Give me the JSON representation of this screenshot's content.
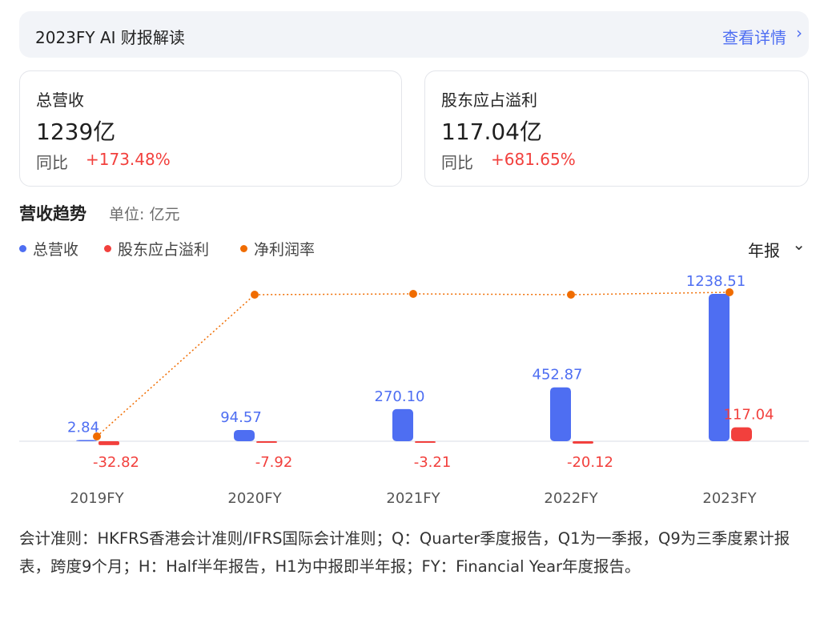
{
  "header": {
    "title": "2023FY AI 财报解读",
    "link_label": "查看详情",
    "chevron_icon": "chevron-right-icon"
  },
  "cards": [
    {
      "label": "总营收",
      "value": "1239亿",
      "yoy_label": "同比",
      "yoy": "+173.48%"
    },
    {
      "label": "股东应占溢利",
      "value": "117.04亿",
      "yoy_label": "同比",
      "yoy": "+681.65%"
    }
  ],
  "section": {
    "title": "营收趋势",
    "unit": "单位: 亿元",
    "period_label": "年报",
    "period_icon": "chevron-down-icon"
  },
  "legend": [
    {
      "name": "总营收",
      "color": "#4e6ef2"
    },
    {
      "name": "股东应占溢利",
      "color": "#f2403d"
    },
    {
      "name": "净利润率",
      "color": "#f06c00"
    }
  ],
  "chart_data": {
    "type": "bar",
    "categories": [
      "2019FY",
      "2020FY",
      "2021FY",
      "2022FY",
      "2023FY"
    ],
    "series": [
      {
        "name": "总营收",
        "type": "bar",
        "color": "#4e6ef2",
        "values": [
          2.84,
          94.57,
          270.1,
          452.87,
          1238.51
        ],
        "labels": [
          "2.84",
          "94.57",
          "270.10",
          "452.87",
          "1238.51"
        ]
      },
      {
        "name": "股东应占溢利",
        "type": "bar",
        "color": "#f2403d",
        "values": [
          -32.82,
          -7.92,
          -3.21,
          -20.12,
          117.04
        ],
        "labels": [
          "-32.82",
          "-7.92",
          "-3.21",
          "-20.12",
          "117.04"
        ]
      },
      {
        "name": "净利润率",
        "type": "line",
        "style": "dotted",
        "color": "#f06c00",
        "values": [
          null,
          null,
          null,
          null,
          null
        ]
      }
    ]
  },
  "footnote": "会计准则：HKFRS香港会计准则/IFRS国际会计准则；Q：Quarter季度报告，Q1为一季报，Q9为三季度累计报表，跨度9个月；H：Half半年报告，H1为中报即半年报；FY：Financial Year年度报告。"
}
